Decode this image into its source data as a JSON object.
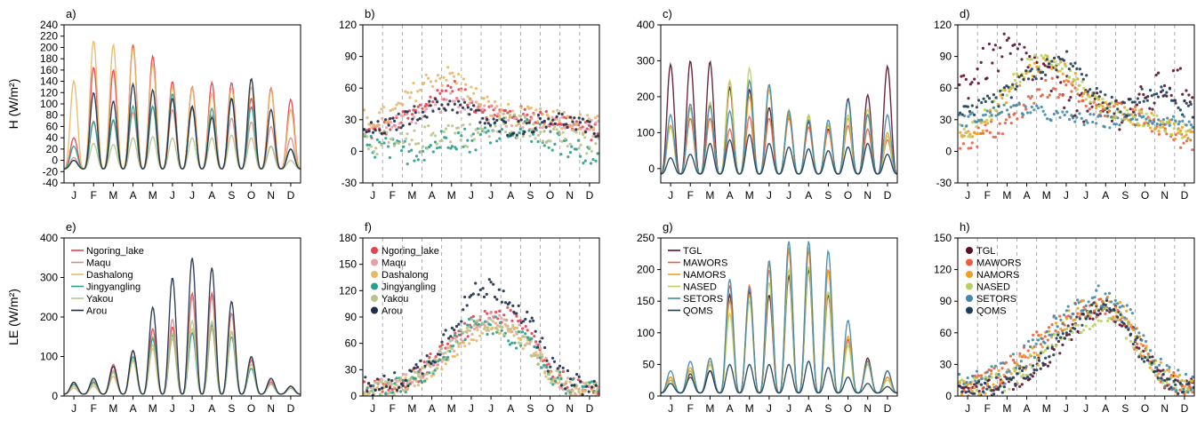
{
  "months": [
    "J",
    "F",
    "M",
    "A",
    "M",
    "J",
    "J",
    "A",
    "S",
    "O",
    "N",
    "D"
  ],
  "chart_data": [
    {
      "panel": "a)",
      "type": "line",
      "ylabel": "H (W/m²)",
      "ylim": [
        -40,
        240
      ],
      "yticks": [
        -40,
        -20,
        0,
        20,
        40,
        60,
        80,
        100,
        120,
        140,
        160,
        180,
        200,
        220,
        240
      ],
      "series": [
        {
          "name": "Ngoring_lake",
          "color": "#e8404f",
          "peaks": [
            40,
            165,
            160,
            205,
            185,
            140,
            130,
            138,
            138,
            110,
            128,
            108
          ]
        },
        {
          "name": "Maqu",
          "color": "#d4908a",
          "peaks": [
            5,
            70,
            70,
            85,
            95,
            90,
            92,
            80,
            75,
            68,
            60,
            40
          ]
        },
        {
          "name": "Dashalong",
          "color": "#e8b866",
          "peaks": [
            140,
            212,
            205,
            200,
            170,
            130,
            128,
            118,
            128,
            130,
            125,
            90
          ]
        },
        {
          "name": "Jingyangling",
          "color": "#2a9f8a",
          "peaks": [
            25,
            68,
            72,
            96,
            96,
            118,
            95,
            92,
            110,
            95,
            25,
            20
          ]
        },
        {
          "name": "Yakou",
          "color": "#b8c48a",
          "peaks": [
            0,
            30,
            28,
            40,
            42,
            40,
            40,
            40,
            45,
            40,
            25,
            0
          ]
        },
        {
          "name": "Arou",
          "color": "#1d2d4a",
          "peaks": [
            0,
            120,
            105,
            135,
            125,
            110,
            96,
            76,
            110,
            145,
            90,
            20
          ]
        }
      ]
    },
    {
      "panel": "b)",
      "type": "scatter",
      "ylim": [
        -30,
        120
      ],
      "yticks": [
        -30,
        0,
        30,
        60,
        90,
        120
      ],
      "series": [
        {
          "name": "Ngoring_lake",
          "color": "#e8404f",
          "mid": [
            18,
            25,
            35,
            50,
            62,
            45,
            38,
            35,
            35,
            30,
            28,
            18
          ],
          "spread": 8
        },
        {
          "name": "Maqu",
          "color": "#e8a0a6",
          "mid": [
            22,
            28,
            32,
            42,
            48,
            40,
            35,
            30,
            28,
            26,
            25,
            22
          ],
          "spread": 8
        },
        {
          "name": "Dashalong",
          "color": "#e8b866",
          "mid": [
            30,
            35,
            55,
            70,
            72,
            55,
            40,
            35,
            32,
            30,
            28,
            25
          ],
          "spread": 10
        },
        {
          "name": "Jingyangling",
          "color": "#2a9f8a",
          "mid": [
            5,
            0,
            0,
            5,
            15,
            10,
            20,
            25,
            18,
            10,
            0,
            0
          ],
          "spread": 12
        },
        {
          "name": "Yakou",
          "color": "#b8c48a",
          "mid": [
            10,
            5,
            8,
            15,
            20,
            15,
            22,
            25,
            22,
            20,
            10,
            5
          ],
          "spread": 12
        },
        {
          "name": "Arou",
          "color": "#1d2d4a",
          "mid": [
            20,
            25,
            35,
            42,
            45,
            38,
            25,
            22,
            25,
            32,
            28,
            20
          ],
          "spread": 8
        }
      ]
    },
    {
      "panel": "c)",
      "type": "line",
      "ylim": [
        -40,
        400
      ],
      "yticks": [
        0,
        100,
        200,
        300,
        400
      ],
      "series": [
        {
          "name": "TGL",
          "color": "#5a0f2a",
          "peaks": [
            290,
            300,
            298,
            225,
            220,
            170,
            150,
            130,
            110,
            195,
            205,
            285
          ]
        },
        {
          "name": "MAWORS",
          "color": "#e86040",
          "peaks": [
            120,
            140,
            140,
            110,
            145,
            140,
            140,
            115,
            105,
            120,
            110,
            80
          ]
        },
        {
          "name": "NAMORS",
          "color": "#f0a020",
          "peaks": [
            120,
            170,
            180,
            240,
            200,
            220,
            150,
            145,
            120,
            140,
            150,
            100
          ]
        },
        {
          "name": "NASED",
          "color": "#b8d060",
          "peaks": [
            115,
            165,
            185,
            245,
            280,
            230,
            165,
            150,
            125,
            150,
            165,
            90
          ]
        },
        {
          "name": "SETORS",
          "color": "#4488aa",
          "peaks": [
            150,
            180,
            175,
            160,
            245,
            235,
            160,
            135,
            135,
            190,
            150,
            150
          ]
        },
        {
          "name": "QOMS",
          "color": "#1d3d5a",
          "peaks": [
            30,
            40,
            70,
            80,
            95,
            70,
            60,
            55,
            50,
            60,
            70,
            40
          ]
        }
      ]
    },
    {
      "panel": "d)",
      "type": "scatter",
      "ylim": [
        -30,
        120
      ],
      "yticks": [
        -30,
        0,
        30,
        60,
        90,
        120
      ],
      "series": [
        {
          "name": "TGL",
          "color": "#5a0f2a",
          "mid": [
            65,
            85,
            95,
            85,
            70,
            55,
            40,
            35,
            40,
            45,
            65,
            60
          ],
          "spread": 18
        },
        {
          "name": "MAWORS",
          "color": "#e86040",
          "mid": [
            10,
            18,
            25,
            45,
            60,
            60,
            50,
            40,
            35,
            30,
            20,
            10
          ],
          "spread": 10
        },
        {
          "name": "NAMORS",
          "color": "#f0a020",
          "mid": [
            18,
            30,
            55,
            75,
            85,
            75,
            55,
            40,
            35,
            30,
            25,
            15
          ],
          "spread": 8
        },
        {
          "name": "NASED",
          "color": "#b8d060",
          "mid": [
            20,
            35,
            60,
            80,
            90,
            80,
            55,
            40,
            35,
            32,
            25,
            18
          ],
          "spread": 8
        },
        {
          "name": "SETORS",
          "color": "#4488aa",
          "mid": [
            30,
            35,
            40,
            40,
            35,
            32,
            30,
            28,
            30,
            30,
            30,
            28
          ],
          "spread": 6
        },
        {
          "name": "QOMS",
          "color": "#1d3d5a",
          "mid": [
            35,
            45,
            55,
            70,
            80,
            88,
            65,
            45,
            40,
            55,
            55,
            40
          ],
          "spread": 8
        }
      ]
    },
    {
      "panel": "e)",
      "type": "line",
      "ylabel": "LE (W/m²)",
      "ylim": [
        0,
        400
      ],
      "yticks": [
        0,
        100,
        200,
        300,
        400
      ],
      "series": [
        {
          "name": "Ngoring_lake",
          "color": "#e8404f",
          "peaks": [
            30,
            35,
            80,
            115,
            170,
            175,
            260,
            260,
            210,
            90,
            35,
            20
          ]
        },
        {
          "name": "Maqu",
          "color": "#d4908a",
          "peaks": [
            35,
            40,
            65,
            100,
            150,
            195,
            250,
            250,
            210,
            95,
            40,
            25
          ]
        },
        {
          "name": "Dashalong",
          "color": "#e8b866",
          "peaks": [
            20,
            25,
            50,
            90,
            120,
            145,
            170,
            170,
            165,
            80,
            30,
            20
          ]
        },
        {
          "name": "Jingyangling",
          "color": "#2a9f8a",
          "peaks": [
            30,
            35,
            60,
            100,
            145,
            155,
            160,
            180,
            150,
            70,
            30,
            20
          ]
        },
        {
          "name": "Yakou",
          "color": "#b8c48a",
          "peaks": [
            25,
            30,
            60,
            90,
            130,
            160,
            190,
            190,
            160,
            80,
            30,
            20
          ]
        },
        {
          "name": "Arou",
          "color": "#1d2d4a",
          "peaks": [
            35,
            45,
            75,
            115,
            225,
            300,
            350,
            325,
            240,
            100,
            45,
            25
          ]
        }
      ]
    },
    {
      "panel": "f)",
      "type": "scatter",
      "ylim": [
        0,
        180
      ],
      "yticks": [
        0,
        30,
        60,
        90,
        120,
        150,
        180
      ],
      "series": [
        {
          "name": "Ngoring_lake",
          "color": "#e8404f",
          "mid": [
            8,
            10,
            20,
            40,
            60,
            80,
            95,
            90,
            70,
            30,
            12,
            6
          ],
          "spread": 10
        },
        {
          "name": "Maqu",
          "color": "#e8a0a6",
          "mid": [
            8,
            12,
            20,
            38,
            55,
            75,
            85,
            80,
            60,
            28,
            10,
            6
          ],
          "spread": 10
        },
        {
          "name": "Dashalong",
          "color": "#e8b866",
          "mid": [
            6,
            8,
            15,
            30,
            50,
            70,
            80,
            75,
            55,
            25,
            10,
            6
          ],
          "spread": 10
        },
        {
          "name": "Jingyangling",
          "color": "#2a9f8a",
          "mid": [
            5,
            8,
            15,
            35,
            55,
            80,
            80,
            70,
            55,
            25,
            10,
            5
          ],
          "spread": 12
        },
        {
          "name": "Yakou",
          "color": "#b8c48a",
          "mid": [
            6,
            10,
            18,
            35,
            55,
            80,
            85,
            75,
            55,
            25,
            10,
            6
          ],
          "spread": 10
        },
        {
          "name": "Arou",
          "color": "#1d2d4a",
          "mid": [
            10,
            15,
            25,
            45,
            80,
            115,
            125,
            110,
            80,
            35,
            15,
            8
          ],
          "spread": 12
        }
      ]
    },
    {
      "panel": "g)",
      "type": "line",
      "ylim": [
        0,
        250
      ],
      "yticks": [
        0,
        50,
        100,
        150,
        200,
        250
      ],
      "series": [
        {
          "name": "TGL",
          "color": "#5a0f2a",
          "peaks": [
            25,
            35,
            40,
            160,
            165,
            160,
            190,
            200,
            160,
            90,
            60,
            40
          ]
        },
        {
          "name": "MAWORS",
          "color": "#e86040",
          "peaks": [
            30,
            40,
            50,
            175,
            175,
            200,
            230,
            230,
            200,
            90,
            50,
            30
          ]
        },
        {
          "name": "NAMORS",
          "color": "#f0a020",
          "peaks": [
            30,
            45,
            55,
            150,
            160,
            210,
            235,
            235,
            200,
            95,
            55,
            30
          ]
        },
        {
          "name": "NASED",
          "color": "#b8d060",
          "peaks": [
            25,
            40,
            50,
            130,
            150,
            180,
            200,
            205,
            165,
            80,
            50,
            25
          ]
        },
        {
          "name": "SETORS",
          "color": "#4488aa",
          "peaks": [
            40,
            55,
            60,
            185,
            170,
            215,
            245,
            245,
            230,
            120,
            55,
            40
          ]
        },
        {
          "name": "QOMS",
          "color": "#1d3d5a",
          "peaks": [
            20,
            30,
            40,
            50,
            50,
            50,
            50,
            55,
            45,
            30,
            20,
            15
          ]
        }
      ]
    },
    {
      "panel": "h)",
      "type": "scatter",
      "ylim": [
        0,
        150
      ],
      "yticks": [
        0,
        30,
        60,
        90,
        120,
        150
      ],
      "series": [
        {
          "name": "TGL",
          "color": "#5a0f2a",
          "mid": [
            6,
            8,
            12,
            20,
            35,
            55,
            75,
            85,
            70,
            40,
            15,
            8
          ],
          "spread": 8
        },
        {
          "name": "MAWORS",
          "color": "#e86040",
          "mid": [
            10,
            15,
            25,
            45,
            60,
            75,
            85,
            85,
            70,
            35,
            15,
            10
          ],
          "spread": 10
        },
        {
          "name": "NAMORS",
          "color": "#f0a020",
          "mid": [
            10,
            12,
            20,
            35,
            55,
            70,
            85,
            88,
            75,
            40,
            18,
            10
          ],
          "spread": 10
        },
        {
          "name": "NASED",
          "color": "#b8d060",
          "mid": [
            8,
            10,
            15,
            28,
            45,
            60,
            72,
            80,
            65,
            35,
            15,
            8
          ],
          "spread": 10
        },
        {
          "name": "SETORS",
          "color": "#4488aa",
          "mid": [
            12,
            15,
            25,
            40,
            60,
            75,
            90,
            95,
            80,
            45,
            20,
            12
          ],
          "spread": 12
        },
        {
          "name": "QOMS",
          "color": "#1d3d5a",
          "mid": [
            5,
            8,
            12,
            25,
            40,
            60,
            80,
            85,
            65,
            35,
            12,
            5
          ],
          "spread": 8
        }
      ]
    }
  ]
}
